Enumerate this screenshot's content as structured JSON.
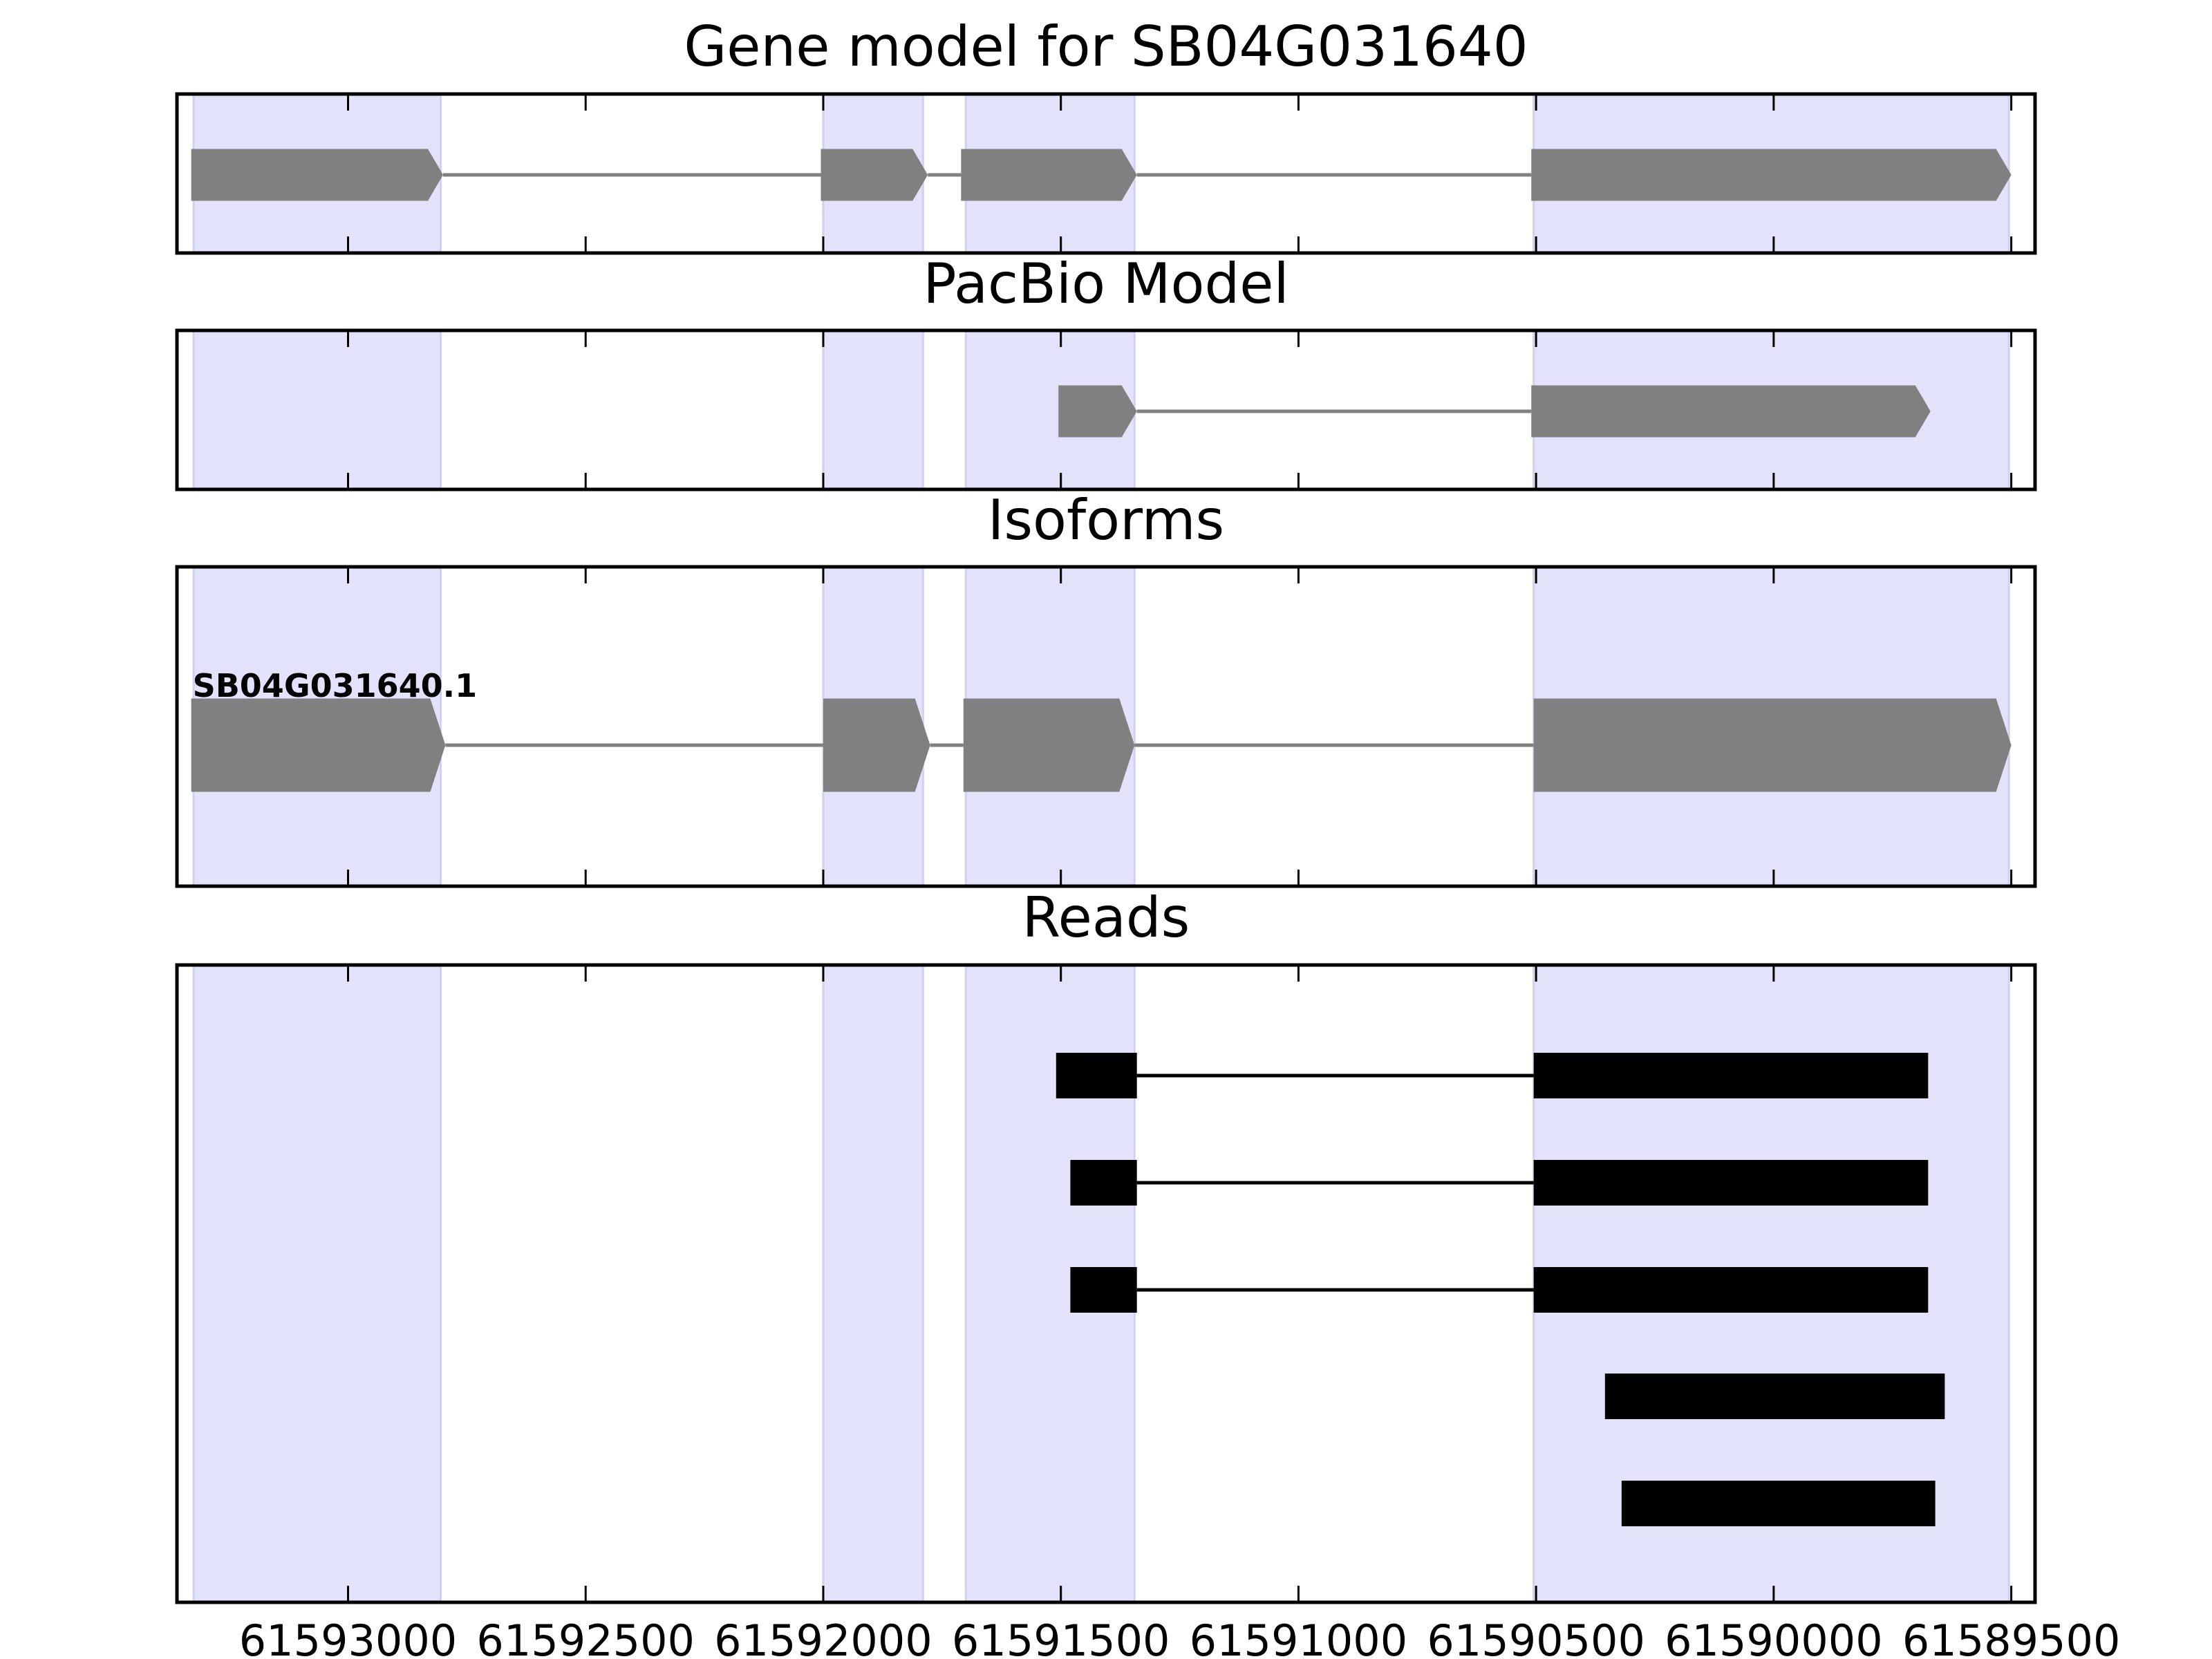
{
  "x_axis": {
    "ticks": [
      61593000,
      61592500,
      61592000,
      61591500,
      61591000,
      61590500,
      61590000,
      61589500
    ],
    "tick_labels": [
      "61593000",
      "61592500",
      "61592000",
      "61591500",
      "61591000",
      "61590500",
      "61590000",
      "61589500"
    ],
    "xlim": [
      61593360,
      61589450
    ],
    "direction": "reversed"
  },
  "colors": {
    "exon_highlight": "#e2e2fb",
    "highlight_edge": "#d0d0ef",
    "gene_feature": "#808080",
    "read": "#000000",
    "axes": "#000000"
  },
  "chart_data": [
    {
      "type": "gene-track",
      "title": "Gene model for SB04G031640",
      "highlight_regions": [
        [
          61593325,
          61592805
        ],
        [
          61592000,
          61591790
        ],
        [
          61591700,
          61591345
        ],
        [
          61590505,
          61589505
        ]
      ],
      "features": [
        {
          "exons": [
            [
              61593330,
              61592800
            ],
            [
              61592005,
              61591780
            ],
            [
              61591710,
              61591340
            ],
            [
              61590510,
              61589500
            ]
          ],
          "strand": "-"
        }
      ]
    },
    {
      "type": "gene-track",
      "title": "PacBio Model",
      "highlight_regions": [
        [
          61593325,
          61592805
        ],
        [
          61592000,
          61591790
        ],
        [
          61591700,
          61591345
        ],
        [
          61590505,
          61589505
        ]
      ],
      "features": [
        {
          "exons": [
            [
              61591505,
              61591340
            ],
            [
              61590510,
              61589670
            ]
          ],
          "strand": "-"
        }
      ]
    },
    {
      "type": "gene-track",
      "title": "Isoforms",
      "highlight_regions": [
        [
          61593325,
          61592805
        ],
        [
          61592000,
          61591790
        ],
        [
          61591700,
          61591345
        ],
        [
          61590505,
          61589505
        ]
      ],
      "features": [
        {
          "label": "SB04G031640.1",
          "exons": [
            [
              61593330,
              61592795
            ],
            [
              61592000,
              61591775
            ],
            [
              61591705,
              61591345
            ],
            [
              61590505,
              61589500
            ]
          ],
          "strand": "-"
        }
      ]
    },
    {
      "type": "reads",
      "title": "Reads",
      "highlight_regions": [
        [
          61593325,
          61592805
        ],
        [
          61592000,
          61591790
        ],
        [
          61591700,
          61591345
        ],
        [
          61590505,
          61589505
        ]
      ],
      "reads": [
        {
          "blocks": [
            [
              61591510,
              61591340
            ],
            [
              61590505,
              61589675
            ]
          ]
        },
        {
          "blocks": [
            [
              61591480,
              61591340
            ],
            [
              61590505,
              61589675
            ]
          ]
        },
        {
          "blocks": [
            [
              61591480,
              61591340
            ],
            [
              61590505,
              61589675
            ]
          ]
        },
        {
          "blocks": [
            [
              61590355,
              61589640
            ]
          ]
        },
        {
          "blocks": [
            [
              61590320,
              61589660
            ]
          ]
        }
      ]
    }
  ]
}
